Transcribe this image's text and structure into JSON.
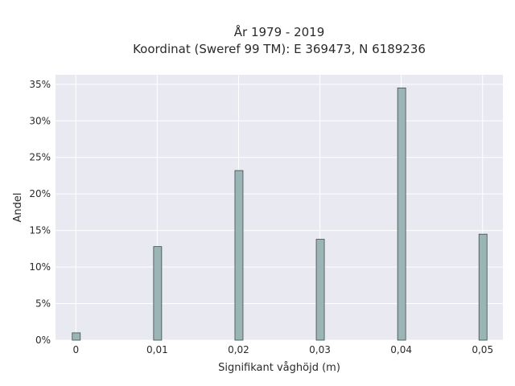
{
  "chart_data": {
    "type": "bar",
    "title": [
      "År 1979 - 2019",
      "Koordinat (Sweref 99 TM): E 369473, N 6189236"
    ],
    "xlabel": "Signifikant våghöjd (m)",
    "ylabel": "Andel",
    "x": [
      0,
      0.01,
      0.02,
      0.03,
      0.04,
      0.05
    ],
    "x_tick_labels": [
      "0",
      "0,01",
      "0,02",
      "0,03",
      "0,04",
      "0,05"
    ],
    "values": [
      1.0,
      12.8,
      23.2,
      13.8,
      34.5,
      14.5
    ],
    "y_ticks": [
      0,
      5,
      10,
      15,
      20,
      25,
      30,
      35
    ],
    "y_tick_labels": [
      "0%",
      "5%",
      "10%",
      "15%",
      "20%",
      "25%",
      "30%",
      "35%"
    ],
    "xlim": [
      -0.0025,
      0.0525
    ],
    "ylim": [
      0,
      36.3
    ],
    "grid": true,
    "bar_color": "#9bb5b6",
    "bar_edge_color": "#3d4a4a",
    "plot_background": "#e9e9f1"
  }
}
